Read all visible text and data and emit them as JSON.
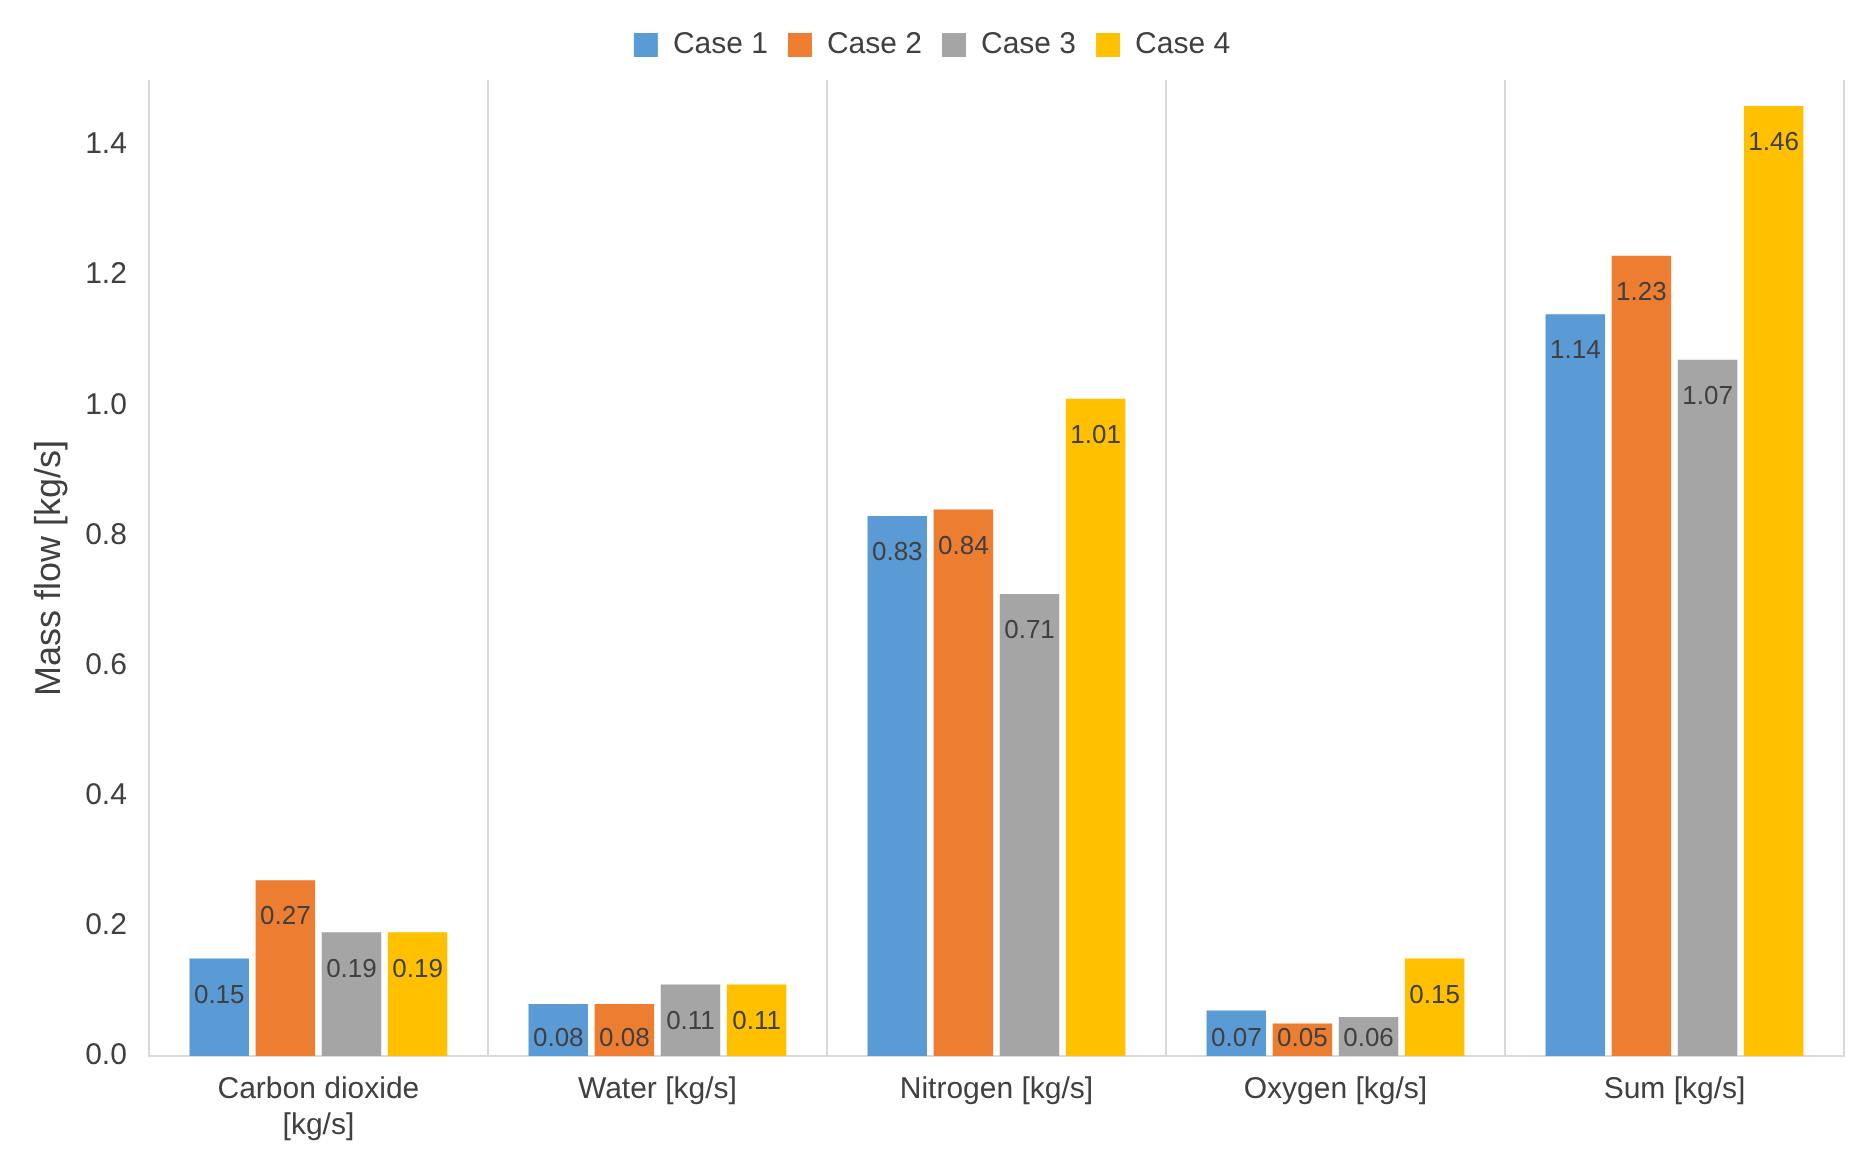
{
  "chart_data": {
    "type": "bar",
    "ylabel": "Mass flow [kg/s]",
    "categories": [
      "Carbon dioxide [kg/s]",
      "Water [kg/s]",
      "Nitrogen [kg/s]",
      "Oxygen [kg/s]",
      "Sum [kg/s]"
    ],
    "series": [
      {
        "name": "Case 1",
        "color": "#5b9bd5",
        "values": [
          0.15,
          0.08,
          0.83,
          0.07,
          1.14
        ]
      },
      {
        "name": "Case 2",
        "color": "#ed7d31",
        "values": [
          0.27,
          0.08,
          0.84,
          0.05,
          1.23
        ]
      },
      {
        "name": "Case 3",
        "color": "#a5a5a5",
        "values": [
          0.19,
          0.11,
          0.71,
          0.06,
          1.07
        ]
      },
      {
        "name": "Case 4",
        "color": "#ffc000",
        "values": [
          0.19,
          0.11,
          1.01,
          0.15,
          1.46
        ]
      }
    ],
    "ylim": [
      0,
      1.5
    ],
    "yticks": [
      {
        "value": 0,
        "label": "0.0"
      },
      {
        "value": 0.2,
        "label": "0.2"
      },
      {
        "value": 0.4,
        "label": "0.4"
      },
      {
        "value": 0.6,
        "label": "0.6"
      },
      {
        "value": 0.8,
        "label": "0.8"
      },
      {
        "value": 1.0,
        "label": "1.0"
      },
      {
        "value": 1.2,
        "label": "1.2"
      },
      {
        "value": 1.4,
        "label": "1.4"
      }
    ],
    "grid": "x",
    "legend": "top",
    "data_labels": true
  }
}
